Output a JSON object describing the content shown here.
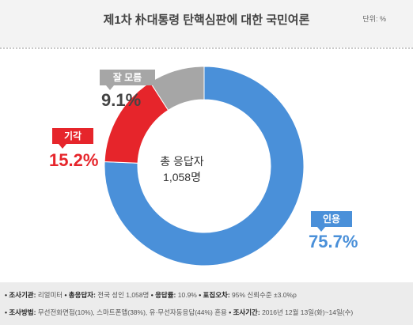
{
  "header": {
    "title": "제1차 朴대통령 탄핵심판에 대한 국민여론",
    "unit": "단위: %"
  },
  "chart_data": {
    "type": "pie",
    "donut": true,
    "categories": [
      "인용",
      "기각",
      "잘 모름"
    ],
    "values": [
      75.7,
      15.2,
      9.1
    ],
    "value_labels": [
      "75.7%",
      "15.2%",
      "9.1%"
    ],
    "colors": [
      "#4a90d9",
      "#e6252b",
      "#a6a6a6"
    ],
    "center_label": "총 응답자",
    "center_value": "1,058명"
  },
  "footer": {
    "line1": [
      {
        "k": "• 조사기관:",
        "v": " 리얼미터"
      },
      {
        "k": " • 총응답자:",
        "v": " 전국 성인 1,058명"
      },
      {
        "k": " • 응답률:",
        "v": " 10.9%"
      },
      {
        "k": " • 표집오차:",
        "v": " 95% 신뢰수준 ±3.0%p"
      }
    ],
    "line2": [
      {
        "k": "• 조사방법:",
        "v": " 무선전화면접(10%), 스마트폰앱(38%), 유·무선자동응답(44%) 혼용"
      },
      {
        "k": " • 조사기간:",
        "v": " 2016년 12월 13일(화)~14일(수)"
      }
    ]
  }
}
